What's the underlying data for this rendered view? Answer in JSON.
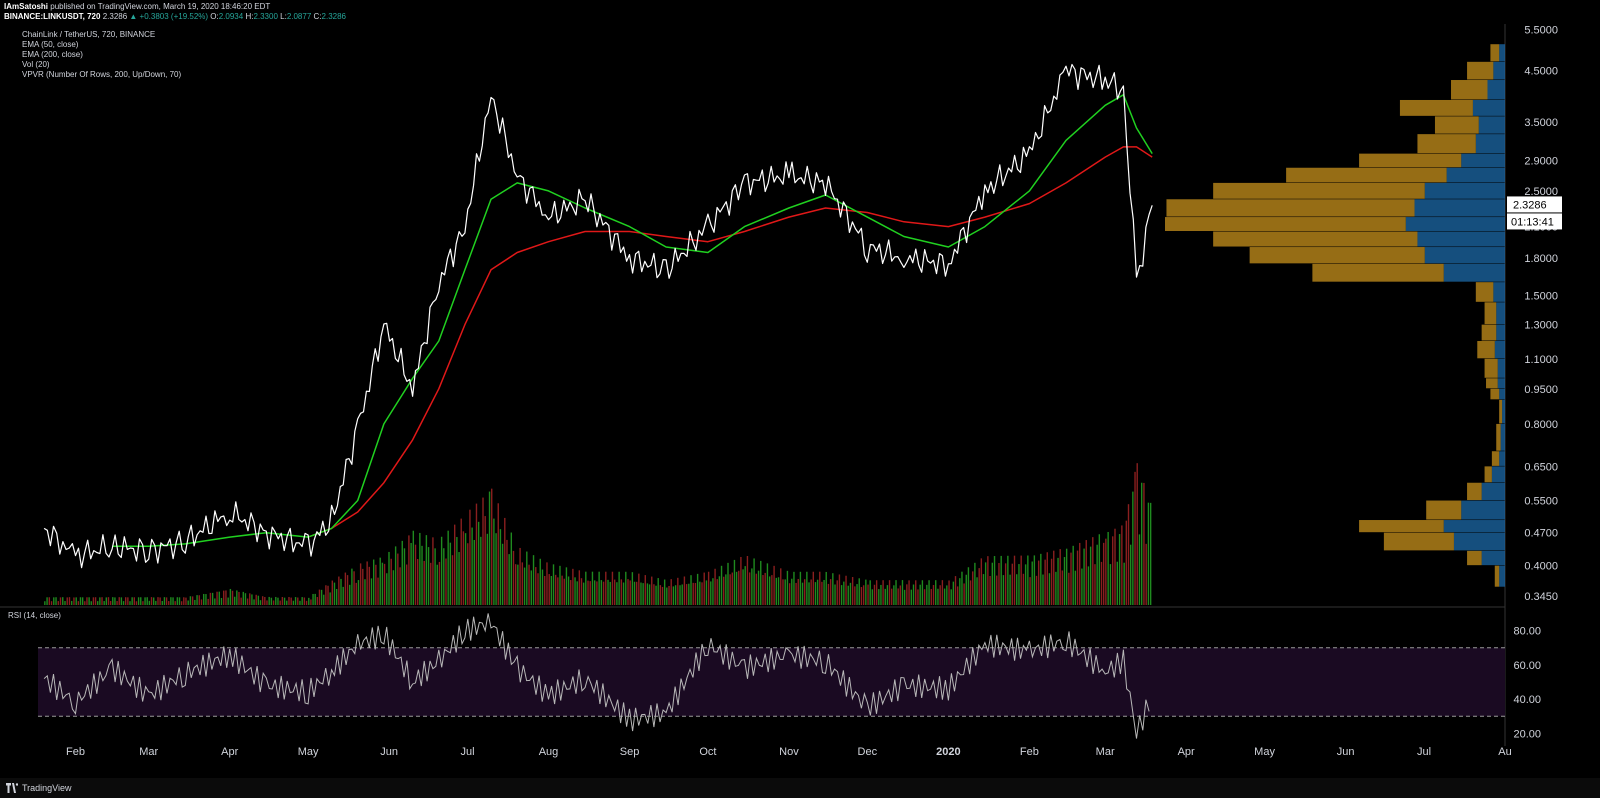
{
  "header": {
    "author": "IAmSatoshi",
    "published": "published on TradingView.com, March 19, 2020 18:46:20 EDT",
    "symbol": "BINANCE:LINKUSDT, 720",
    "last": "2.3286",
    "change": "▲ +0.3803 (+19.52%)",
    "o_label": "O:",
    "o": "2.0934",
    "h_label": "H:",
    "h": "2.3300",
    "l_label": "L:",
    "l": "2.0877",
    "c_label": "C:",
    "c": "2.3286"
  },
  "legend": {
    "title": "ChainLink / TetherUS, 720, BINANCE",
    "ema50": "EMA (50, close)",
    "ema200": "EMA (200, close)",
    "vol": "Vol (20)",
    "vpvr": "VPVR (Number Of Rows, 200, Up/Down, 70)"
  },
  "rsi_label": "RSI (14, close)",
  "price_tag": "2.3286",
  "countdown_tag": "01:13:41",
  "footer": {
    "brand": "TradingView"
  },
  "colors": {
    "background": "#000000",
    "price": "#ffffff",
    "ema50": "#20d020",
    "ema200": "#e01818",
    "vol_up": "#1f8a1f",
    "vol_down": "#8a1f1f",
    "vpvr_up": "#1c6aa8",
    "vpvr_down": "#c8921c",
    "rsi": "#b8b8b8",
    "rsi_band": "#1a0a22"
  },
  "chart_data": [
    {
      "type": "line",
      "title": "ChainLink / TetherUS, 720, BINANCE",
      "scale": "log",
      "x_tick_labels": [
        "Feb",
        "Mar",
        "Apr",
        "May",
        "Jun",
        "Jul",
        "Aug",
        "Sep",
        "Oct",
        "Nov",
        "Dec",
        "2020",
        "Feb",
        "Mar",
        "Apr",
        "May",
        "Jun",
        "Jul",
        "Au"
      ],
      "y_tick_labels": [
        "5.5000",
        "4.5000",
        "3.5000",
        "2.9000",
        "2.5000",
        "2.1000",
        "1.8000",
        "1.5000",
        "1.3000",
        "1.1000",
        "0.9500",
        "0.8000",
        "0.6500",
        "0.5500",
        "0.4700",
        "0.4000",
        "0.3450"
      ],
      "ylim": [
        0.33,
        5.6
      ],
      "x": [
        "2019-01-20",
        "2019-02-01",
        "2019-02-15",
        "2019-03-01",
        "2019-03-15",
        "2019-04-01",
        "2019-04-15",
        "2019-05-01",
        "2019-05-10",
        "2019-05-20",
        "2019-05-30",
        "2019-06-10",
        "2019-06-20",
        "2019-06-30",
        "2019-07-10",
        "2019-07-20",
        "2019-08-01",
        "2019-08-15",
        "2019-09-01",
        "2019-09-15",
        "2019-10-01",
        "2019-10-15",
        "2019-11-01",
        "2019-11-15",
        "2019-12-01",
        "2019-12-15",
        "2020-01-01",
        "2020-01-15",
        "2020-02-01",
        "2020-02-15",
        "2020-03-01",
        "2020-03-08",
        "2020-03-13",
        "2020-03-19"
      ],
      "series": [
        {
          "values": [
            0.48,
            0.42,
            0.44,
            0.43,
            0.45,
            0.52,
            0.47,
            0.44,
            0.5,
            0.78,
            1.3,
            0.95,
            1.6,
            2.1,
            4.0,
            2.7,
            2.2,
            2.4,
            1.8,
            1.7,
            2.1,
            2.6,
            2.7,
            2.6,
            1.9,
            1.8,
            1.75,
            2.5,
            3.0,
            4.5,
            4.3,
            4.1,
            1.6,
            2.33
          ]
        },
        {
          "name": "EMA (50, close)",
          "values": [
            null,
            null,
            0.44,
            0.44,
            0.445,
            0.46,
            0.47,
            0.46,
            0.48,
            0.55,
            0.8,
            1.0,
            1.2,
            1.7,
            2.4,
            2.6,
            2.5,
            2.3,
            2.1,
            1.9,
            1.85,
            2.1,
            2.3,
            2.45,
            2.2,
            2.0,
            1.9,
            2.1,
            2.5,
            3.2,
            3.8,
            4.0,
            3.4,
            3.0
          ]
        },
        {
          "name": "EMA (200, close)",
          "values": [
            null,
            null,
            null,
            null,
            null,
            null,
            null,
            0.46,
            0.48,
            0.52,
            0.6,
            0.74,
            0.95,
            1.3,
            1.7,
            1.85,
            1.95,
            2.05,
            2.05,
            2.0,
            1.95,
            2.05,
            2.2,
            2.3,
            2.25,
            2.15,
            2.1,
            2.2,
            2.35,
            2.6,
            2.95,
            3.1,
            3.1,
            2.95
          ]
        }
      ]
    },
    {
      "type": "bar",
      "title": "Vol (20)",
      "values": [
        1,
        1,
        1,
        1,
        1,
        2,
        1,
        1,
        3,
        5,
        6,
        9,
        8,
        11,
        14,
        7,
        5,
        4,
        4,
        3,
        4,
        6,
        4,
        4,
        3,
        3,
        3,
        6,
        6,
        7,
        9,
        10,
        18,
        12
      ]
    },
    {
      "type": "line",
      "title": "RSI (14, close)",
      "y_tick_labels": [
        "80.00",
        "60.00",
        "40.00",
        "20.00"
      ],
      "ylim": [
        15,
        92
      ],
      "bands": [
        30,
        70
      ],
      "values": [
        52,
        38,
        58,
        42,
        55,
        66,
        48,
        44,
        56,
        72,
        78,
        50,
        62,
        80,
        85,
        58,
        42,
        52,
        28,
        32,
        72,
        58,
        66,
        62,
        35,
        48,
        46,
        72,
        68,
        74,
        56,
        62,
        20,
        42
      ]
    },
    {
      "type": "bar",
      "title": "VPVR (Number Of Rows, 200, Up/Down, 70)",
      "levels": [
        0.36,
        0.4,
        0.43,
        0.47,
        0.5,
        0.55,
        0.6,
        0.65,
        0.7,
        0.8,
        0.9,
        0.95,
        1.0,
        1.1,
        1.2,
        1.3,
        1.45,
        1.6,
        1.75,
        1.9,
        2.05,
        2.2,
        2.4,
        2.6,
        2.8,
        3.0,
        3.3,
        3.6,
        3.9,
        4.3,
        4.7
      ],
      "up_volume": [
        4,
        16,
        35,
        42,
        30,
        16,
        9,
        4,
        3,
        2,
        4,
        5,
        5,
        7,
        6,
        6,
        8,
        42,
        55,
        60,
        68,
        62,
        55,
        40,
        30,
        20,
        18,
        22,
        12,
        8,
        4
      ],
      "down_volume": [
        3,
        10,
        48,
        58,
        24,
        10,
        5,
        5,
        3,
        2,
        6,
        8,
        9,
        12,
        10,
        8,
        12,
        90,
        120,
        140,
        165,
        170,
        145,
        110,
        70,
        40,
        30,
        50,
        25,
        18,
        6
      ]
    }
  ]
}
